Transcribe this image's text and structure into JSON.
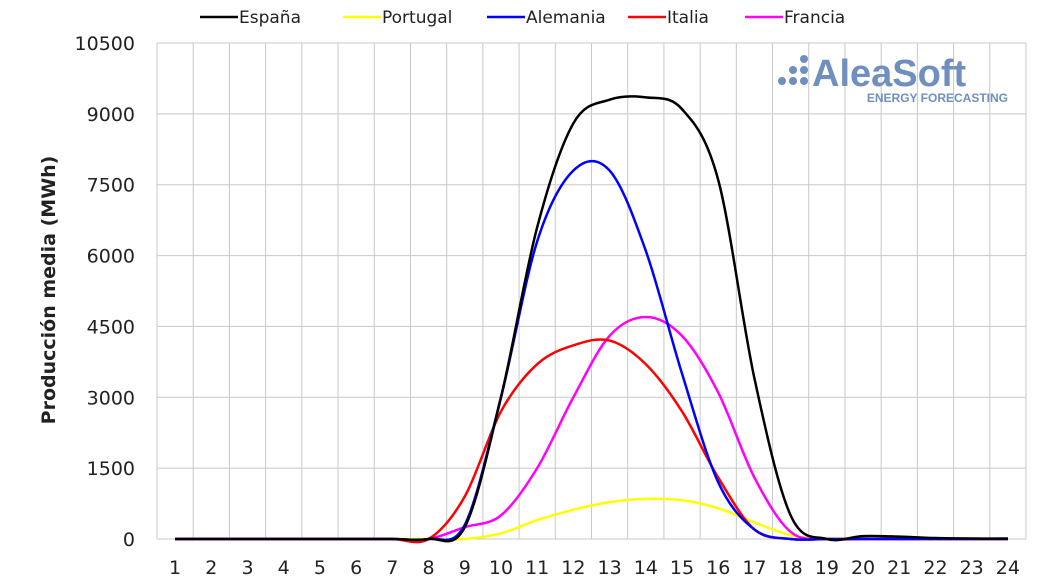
{
  "chart_data": {
    "type": "line",
    "title": "",
    "xlabel": "",
    "ylabel": "Producción media (MWh)",
    "x": [
      1,
      2,
      3,
      4,
      5,
      6,
      7,
      8,
      9,
      10,
      11,
      12,
      13,
      14,
      15,
      16,
      17,
      18,
      19,
      20,
      21,
      22,
      23,
      24
    ],
    "ylim": [
      0,
      10500
    ],
    "yticks": [
      0,
      1500,
      3000,
      4500,
      6000,
      7500,
      9000,
      10500
    ],
    "grid": true,
    "legend_position": "top",
    "series": [
      {
        "name": "España",
        "color": "#000000",
        "values": [
          0,
          0,
          0,
          0,
          0,
          0,
          0,
          0,
          250,
          3000,
          6600,
          8800,
          9300,
          9350,
          9100,
          7600,
          3400,
          500,
          0,
          60,
          50,
          20,
          10,
          10
        ]
      },
      {
        "name": "Portugal",
        "color": "#ffff00",
        "values": [
          0,
          0,
          0,
          0,
          0,
          0,
          0,
          0,
          0,
          120,
          400,
          620,
          780,
          850,
          820,
          650,
          350,
          80,
          0,
          0,
          0,
          0,
          0,
          0
        ]
      },
      {
        "name": "Alemania",
        "color": "#0000ff",
        "values": [
          0,
          0,
          0,
          0,
          0,
          0,
          0,
          0,
          300,
          3000,
          6300,
          7800,
          7800,
          6100,
          3500,
          1200,
          200,
          0,
          0,
          0,
          0,
          0,
          0,
          0
        ]
      },
      {
        "name": "Italia",
        "color": "#ff0000",
        "values": [
          0,
          0,
          0,
          0,
          0,
          0,
          0,
          0,
          900,
          2700,
          3700,
          4100,
          4200,
          3700,
          2700,
          1300,
          200,
          0,
          0,
          0,
          0,
          0,
          0,
          0
        ]
      },
      {
        "name": "Francia",
        "color": "#ff00ff",
        "values": [
          0,
          0,
          0,
          0,
          0,
          0,
          0,
          0,
          250,
          500,
          1500,
          3000,
          4300,
          4700,
          4300,
          3100,
          1300,
          150,
          0,
          0,
          0,
          0,
          0,
          0
        ]
      }
    ]
  },
  "logo": {
    "text": "AleaSoft",
    "subtext": "ENERGY FORECASTING",
    "color": "#6f8fbf"
  }
}
